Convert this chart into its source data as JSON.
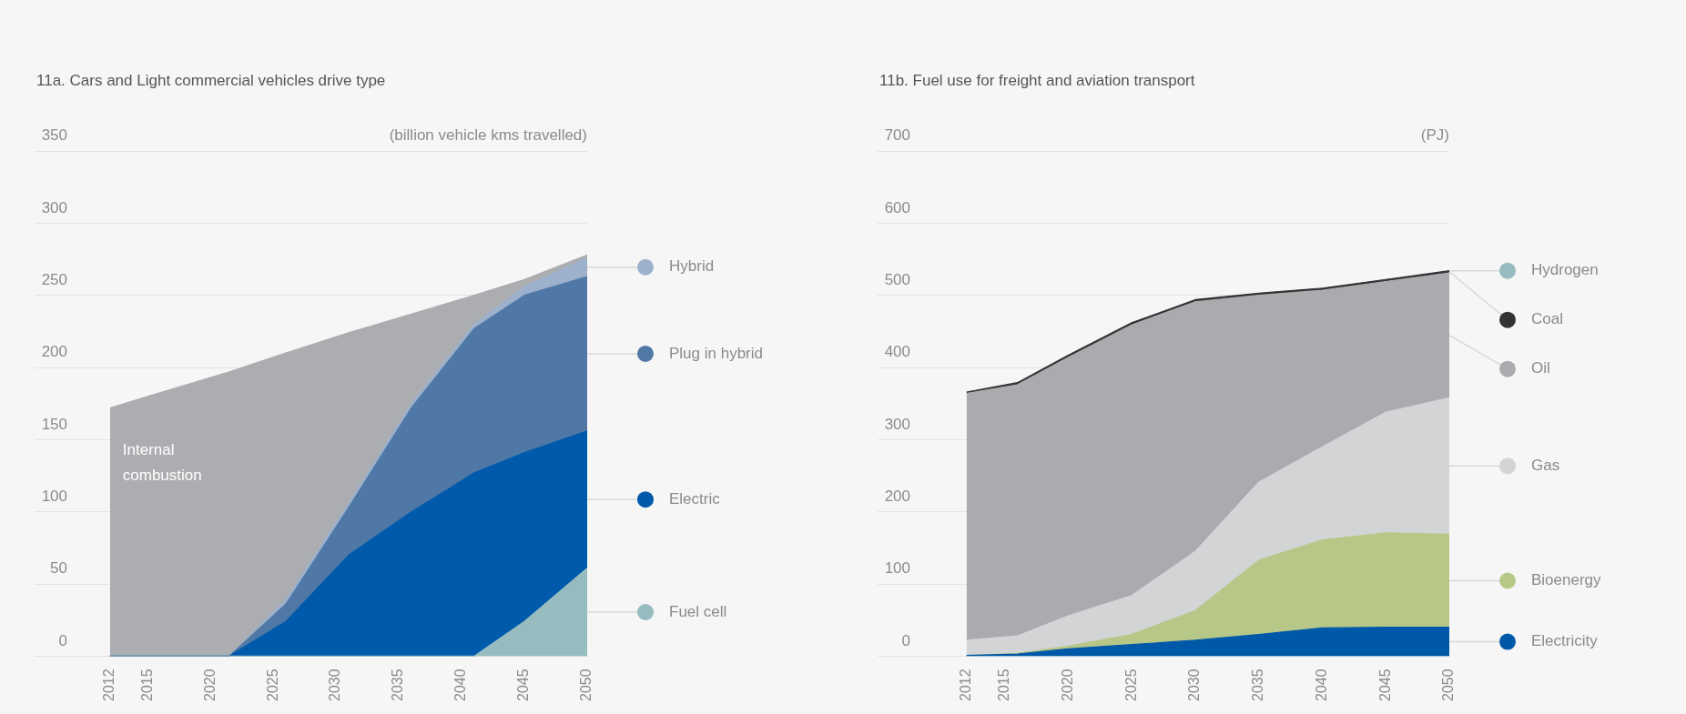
{
  "chart_data": [
    {
      "type": "area",
      "stacked": true,
      "title": "11a. Cars and Light commercial vehicles drive type",
      "ylabel": "(billion vehicle kms travelled)",
      "x": [
        2012,
        2015,
        2020,
        2021.5,
        2026,
        2031,
        2036,
        2041,
        2045,
        2050
      ],
      "xlim": [
        2006,
        2050
      ],
      "xticks": [
        2012,
        2015,
        2020,
        2025,
        2030,
        2035,
        2040,
        2045,
        2050
      ],
      "ylim": [
        0,
        350
      ],
      "yticks": [
        0,
        50,
        100,
        150,
        200,
        250,
        300,
        350
      ],
      "grid": "y",
      "legend": "right",
      "marker": "none",
      "series": [
        {
          "name": "Fuel cell",
          "color": "#96bcbf",
          "values": [
            0,
            0,
            0,
            0,
            0,
            0,
            0,
            0,
            24,
            61
          ]
        },
        {
          "name": "Electric",
          "color": "#005aab",
          "values": [
            0,
            0,
            0,
            0,
            24,
            70,
            100,
            127,
            117,
            95
          ]
        },
        {
          "name": "Plug in hybrid",
          "color": "#5078a6",
          "values": [
            0,
            0,
            0,
            0,
            12,
            33,
            72,
            100,
            109,
            107
          ]
        },
        {
          "name": "Hybrid",
          "color": "#9db1cc",
          "values": [
            0,
            0,
            0,
            0,
            3,
            3,
            3,
            3,
            6,
            13
          ]
        },
        {
          "name": "Internal combustion",
          "color": "#acadb0",
          "values": [
            172,
            180,
            193,
            197,
            171,
            118,
            62,
            20,
            5,
            2
          ]
        }
      ]
    },
    {
      "type": "area",
      "stacked": true,
      "title": "11b. Fuel use for freight and aviation transport",
      "ylabel": "(PJ)",
      "x": [
        2012,
        2016,
        2020,
        2025,
        2030,
        2035,
        2040,
        2045,
        2050
      ],
      "xlim": [
        2005,
        2050
      ],
      "xticks": [
        2012,
        2015,
        2020,
        2025,
        2030,
        2035,
        2040,
        2045,
        2050
      ],
      "ylim": [
        0,
        700
      ],
      "yticks": [
        0,
        100,
        200,
        300,
        400,
        500,
        600,
        700
      ],
      "grid": "y",
      "legend": "right",
      "marker": "none",
      "series": [
        {
          "name": "Electricity",
          "color": "#0058a8",
          "values": [
            1,
            3,
            10,
            16,
            22,
            30,
            39,
            40,
            40
          ]
        },
        {
          "name": "Bioenergy",
          "color": "#b7c788",
          "values": [
            0,
            1,
            4,
            14,
            41,
            103,
            122,
            131,
            129
          ]
        },
        {
          "name": "Gas",
          "color": "#d3d4d6",
          "values": [
            21,
            24,
            42,
            54,
            82,
            108,
            129,
            167,
            189
          ]
        },
        {
          "name": "Oil",
          "color": "#aaabae",
          "values": [
            342,
            348,
            358,
            375,
            346,
            259,
            217,
            181,
            173
          ]
        },
        {
          "name": "Coal",
          "color": "#333333",
          "values": [
            2,
            3,
            3,
            3,
            3,
            3,
            3,
            3,
            3
          ]
        },
        {
          "name": "Hydrogen",
          "color": "#96bcbf",
          "values": [
            null,
            null,
            null,
            null,
            null,
            null,
            null,
            null,
            null
          ]
        }
      ]
    }
  ]
}
